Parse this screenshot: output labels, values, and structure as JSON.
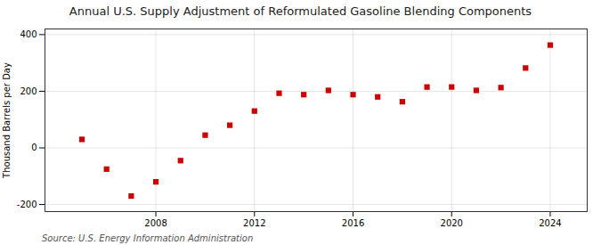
{
  "chart_data": {
    "type": "scatter",
    "title": "Annual U.S. Supply Adjustment of Reformulated Gasoline Blending Components",
    "ylabel": "Thousand Barrels per Day",
    "annotations": [
      "Source: U.S. Energy Information Administration"
    ],
    "x": [
      2005,
      2006,
      2007,
      2008,
      2009,
      2010,
      2011,
      2012,
      2013,
      2014,
      2015,
      2016,
      2017,
      2018,
      2019,
      2020,
      2021,
      2022,
      2023,
      2024
    ],
    "values": [
      30,
      -75,
      -170,
      -120,
      -45,
      45,
      80,
      130,
      193,
      188,
      203,
      188,
      180,
      163,
      215,
      215,
      203,
      213,
      282,
      363
    ],
    "color": "#cc0000",
    "marker": "square",
    "xlim": [
      2003.5,
      2025.5
    ],
    "xticks": [
      2008,
      2012,
      2016,
      2020,
      2024
    ],
    "ylim": [
      -225,
      420
    ],
    "yticks": [
      -200,
      0,
      200,
      400
    ],
    "grid": true
  }
}
